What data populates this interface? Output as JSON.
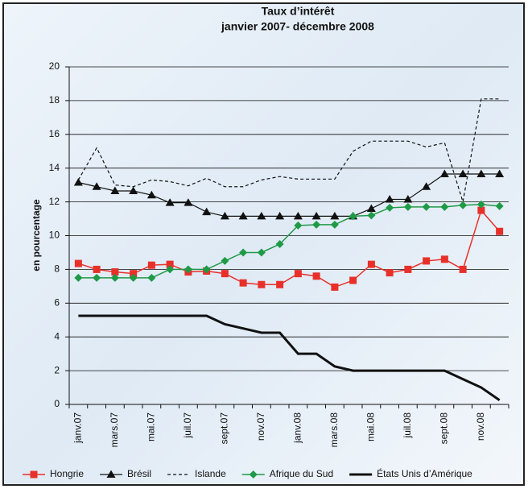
{
  "chart_data": {
    "type": "line",
    "title": "Taux d’intérêt",
    "subtitle": "janvier 2007- décembre 2008",
    "y_label": "en pourcentage",
    "categories": [
      "janv.07",
      null,
      "mars.07",
      null,
      "mai.07",
      null,
      "juil.07",
      null,
      "sept.07",
      null,
      "nov.07",
      null,
      "janv.08",
      null,
      "mars.08",
      null,
      "mai.08",
      null,
      "juil.08",
      null,
      "sept.08",
      null,
      "nov.08",
      null
    ],
    "ylim": [
      0,
      20
    ],
    "yticks": [
      0,
      2,
      4,
      6,
      8,
      10,
      12,
      14,
      16,
      18,
      20
    ],
    "grid": true,
    "legend": "bottom",
    "series": [
      {
        "name": "Hongrie",
        "color": "#e8302a",
        "marker": "square",
        "width": 1.5,
        "dash": false,
        "values": [
          8.35,
          8.0,
          7.85,
          7.75,
          8.25,
          8.3,
          7.85,
          7.9,
          7.75,
          7.2,
          7.1,
          7.1,
          7.75,
          7.6,
          6.95,
          7.35,
          8.3,
          7.8,
          8.0,
          8.5,
          8.6,
          8.0,
          11.5,
          10.25
        ]
      },
      {
        "name": "Brésil",
        "color": "#111111",
        "marker": "triangle",
        "width": 1.2,
        "dash": false,
        "values": [
          13.15,
          12.9,
          12.65,
          12.65,
          12.4,
          11.95,
          11.95,
          11.4,
          11.15,
          11.15,
          11.15,
          11.15,
          11.15,
          11.15,
          11.15,
          11.15,
          11.6,
          12.15,
          12.15,
          12.9,
          13.65,
          13.65,
          13.65,
          13.65
        ]
      },
      {
        "name": "Islande",
        "color": "#111111",
        "marker": "none",
        "width": 1.2,
        "dash": true,
        "values": [
          13.3,
          15.2,
          13.0,
          12.9,
          13.3,
          13.2,
          12.95,
          13.4,
          12.9,
          12.9,
          13.3,
          13.5,
          13.35,
          13.35,
          13.35,
          15.0,
          15.6,
          15.6,
          15.6,
          15.25,
          15.5,
          12.0,
          18.1,
          18.1
        ]
      },
      {
        "name": "Afrique du Sud",
        "color": "#1f9a47",
        "marker": "diamond",
        "width": 1.5,
        "dash": false,
        "values": [
          7.5,
          7.5,
          7.5,
          7.5,
          7.5,
          8.0,
          8.0,
          8.0,
          8.5,
          9.0,
          9.0,
          9.5,
          10.6,
          10.65,
          10.65,
          11.15,
          11.2,
          11.65,
          11.7,
          11.7,
          11.7,
          11.8,
          11.85,
          11.75
        ]
      },
      {
        "name": "États Unis d’Amérique",
        "color": "#111111",
        "marker": "none",
        "width": 3,
        "dash": false,
        "values": [
          5.25,
          5.25,
          5.25,
          5.25,
          5.25,
          5.25,
          5.25,
          5.25,
          4.75,
          4.5,
          4.25,
          4.25,
          3.0,
          3.0,
          2.25,
          2.0,
          2.0,
          2.0,
          2.0,
          2.0,
          2.0,
          1.5,
          1.0,
          0.25
        ]
      }
    ]
  }
}
